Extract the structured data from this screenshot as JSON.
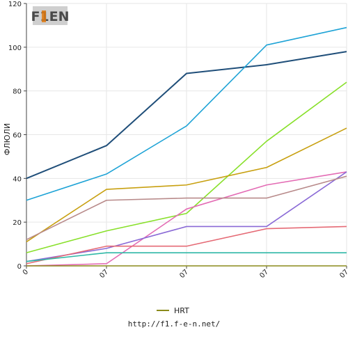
{
  "logo": {
    "text": "F1EN"
  },
  "footer": {
    "url": "http://f1.f-e-n.net/"
  },
  "chart_data": {
    "type": "line",
    "ylabel": "ФЛЮЛИ",
    "xlabel": "",
    "ylim": [
      0,
      120
    ],
    "yticks": [
      0,
      20,
      40,
      60,
      80,
      100,
      120
    ],
    "categories": [
      "0",
      "07",
      "07",
      "07",
      "07"
    ],
    "grid": true,
    "legend": {
      "placement": "bottom",
      "entries": [
        "HRT"
      ]
    },
    "series": [
      {
        "name": "",
        "color": "#1f4e79",
        "values": [
          40,
          55,
          88,
          92,
          98
        ]
      },
      {
        "name": "",
        "color": "#1ea3d6",
        "values": [
          30,
          42,
          64,
          101,
          109
        ]
      },
      {
        "name": "",
        "color": "#88e02a",
        "values": [
          6,
          16,
          24,
          57,
          84
        ]
      },
      {
        "name": "",
        "color": "#c8a010",
        "values": [
          11,
          35,
          37,
          45,
          63
        ]
      },
      {
        "name": "",
        "color": "#e36bb4",
        "values": [
          0,
          1,
          26,
          37,
          43
        ]
      },
      {
        "name": "",
        "color": "#8a6ad6",
        "values": [
          2,
          8,
          18,
          18,
          43
        ]
      },
      {
        "name": "",
        "color": "#b88a8a",
        "values": [
          12,
          30,
          31,
          31,
          41
        ]
      },
      {
        "name": "",
        "color": "#e56a75",
        "values": [
          1,
          9,
          9,
          17,
          18
        ]
      },
      {
        "name": "",
        "color": "#2eb8a6",
        "values": [
          2,
          6,
          6,
          6,
          6
        ]
      },
      {
        "name": "HRT",
        "color": "#8a8a1a",
        "values": [
          0,
          0,
          0,
          0,
          0
        ]
      }
    ]
  }
}
